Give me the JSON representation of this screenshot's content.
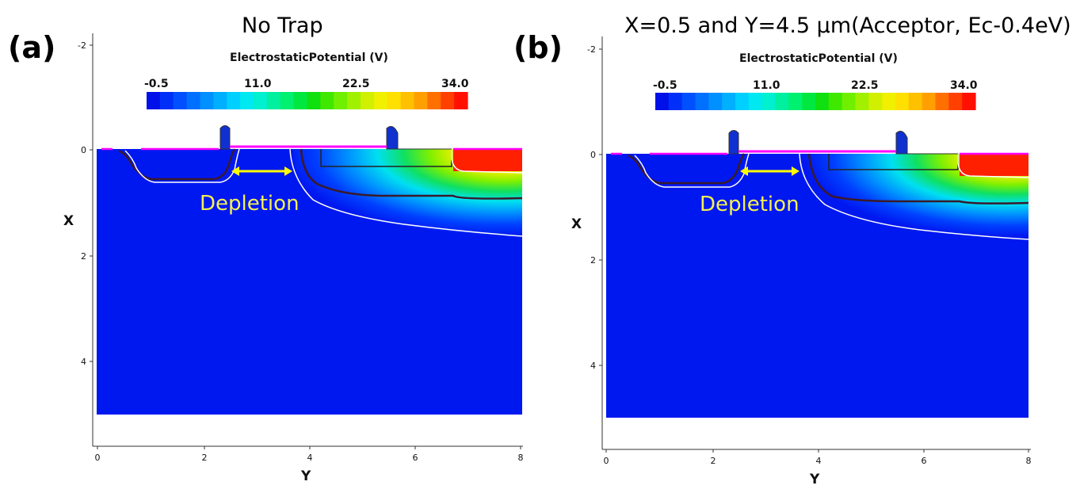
{
  "colors": {
    "substrate": "#0018f0",
    "boundary_white": "#ffffff",
    "junction_dark": "#3a1a2a",
    "electrode_magenta": "#ff00ff",
    "depletion_label": "#f5f050",
    "depletion_arrow": "#ffff00"
  },
  "colorbar": {
    "title": "ElectrostaticPotential (V)",
    "ticks": [
      "-0.5",
      "11.0",
      "22.5",
      "34.0"
    ],
    "range": [
      -0.5,
      34.0
    ],
    "colors": [
      "#0010e8",
      "#0030f8",
      "#0050ff",
      "#0070ff",
      "#0090ff",
      "#00b0ff",
      "#00d0ff",
      "#00e8f0",
      "#00f0d0",
      "#00f0a0",
      "#00f070",
      "#00e840",
      "#10e010",
      "#40e800",
      "#70f000",
      "#a0f000",
      "#d0f000",
      "#f0f000",
      "#ffe000",
      "#ffc000",
      "#ffa000",
      "#ff7000",
      "#ff4000",
      "#ff1000"
    ]
  },
  "axes": {
    "x_label": "X",
    "y_label": "Y",
    "x_ticks": [
      "-2",
      "0",
      "2",
      "4"
    ],
    "y_ticks": [
      "0",
      "2",
      "4",
      "6",
      "8"
    ]
  },
  "panels": [
    {
      "label": "(a)",
      "title": "No Trap",
      "depletion": "Depletion"
    },
    {
      "label": "(b)",
      "title": "X=0.5 and Y=4.5 μm(Acceptor, Ec-0.4eV)",
      "depletion": "Depletion"
    }
  ]
}
